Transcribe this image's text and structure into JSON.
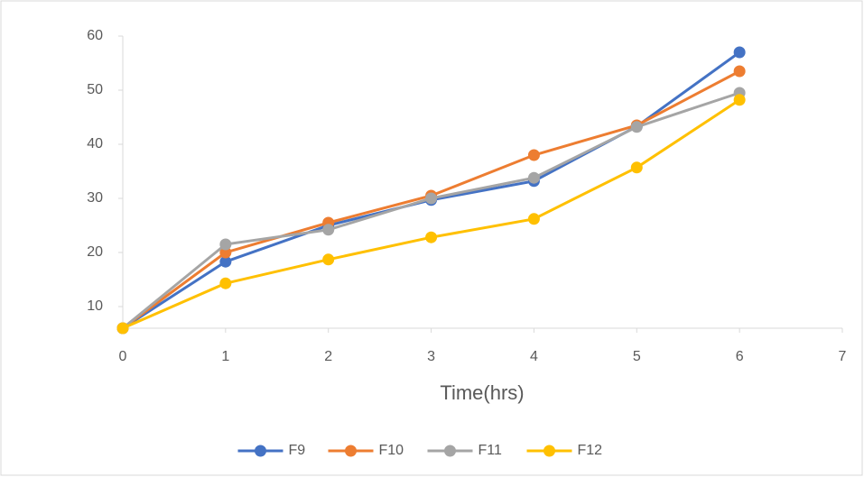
{
  "chart_data": {
    "type": "line",
    "x_label": "Time(hrs)",
    "x": [
      0,
      1,
      2,
      3,
      4,
      5,
      6
    ],
    "series": [
      {
        "name": "F9",
        "color": "#4472c4",
        "values": [
          6,
          18.3,
          25,
          29.7,
          33.2,
          43.3,
          57
        ]
      },
      {
        "name": "F10",
        "color": "#ed7d31",
        "values": [
          6,
          20,
          25.5,
          30.5,
          38,
          43.5,
          53.5
        ]
      },
      {
        "name": "F11",
        "color": "#a5a5a5",
        "values": [
          6,
          21.5,
          24.2,
          30,
          33.8,
          43.2,
          49.5
        ]
      },
      {
        "name": "F12",
        "color": "#ffc000",
        "values": [
          6,
          14.3,
          18.7,
          22.8,
          26.2,
          35.7,
          48.2
        ]
      }
    ],
    "xlim": [
      0,
      7
    ],
    "xticks": [
      0,
      1,
      2,
      3,
      4,
      5,
      6,
      7
    ],
    "ylim": [
      6,
      60
    ],
    "yticks": [
      10,
      20,
      30,
      40,
      50,
      60
    ],
    "legend": "bottom"
  }
}
